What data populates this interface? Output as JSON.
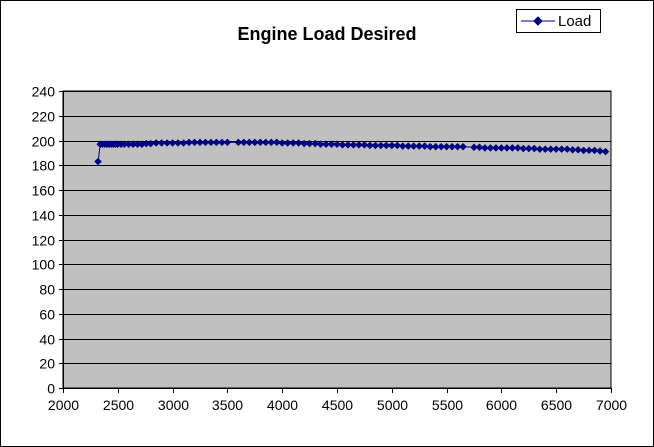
{
  "chart_data": {
    "type": "line",
    "title": "Engine Load Desired",
    "xlabel": "",
    "ylabel": "",
    "xlim": [
      2000,
      7000
    ],
    "ylim": [
      0,
      240
    ],
    "xticks": [
      2000,
      2500,
      3000,
      3500,
      4000,
      4500,
      5000,
      5500,
      6000,
      6500,
      7000
    ],
    "yticks": [
      0,
      20,
      40,
      60,
      80,
      100,
      120,
      140,
      160,
      180,
      200,
      220,
      240
    ],
    "grid": "horizontal major gridlines",
    "legend": "top-right",
    "series": [
      {
        "name": "Load",
        "color": "#000080",
        "marker": "diamond",
        "x": [
          2320,
          2340,
          2360,
          2380,
          2400,
          2420,
          2440,
          2460,
          2480,
          2500,
          2530,
          2560,
          2600,
          2640,
          2680,
          2720,
          2760,
          2800,
          2850,
          2900,
          2950,
          3000,
          3050,
          3100,
          3150,
          3200,
          3250,
          3300,
          3350,
          3400,
          3450,
          3500,
          3600,
          3650,
          3700,
          3750,
          3800,
          3850,
          3900,
          3950,
          4000,
          4050,
          4100,
          4150,
          4200,
          4250,
          4300,
          4350,
          4400,
          4450,
          4500,
          4550,
          4600,
          4650,
          4700,
          4750,
          4800,
          4850,
          4900,
          4950,
          5000,
          5050,
          5100,
          5150,
          5200,
          5250,
          5300,
          5350,
          5400,
          5450,
          5500,
          5550,
          5600,
          5650,
          5750,
          5800,
          5850,
          5900,
          5950,
          6000,
          6050,
          6100,
          6150,
          6200,
          6250,
          6300,
          6350,
          6400,
          6450,
          6500,
          6550,
          6600,
          6650,
          6700,
          6750,
          6800,
          6850,
          6900,
          6950
        ],
        "y": [
          183,
          197,
          197,
          197,
          197,
          197,
          197,
          197,
          197,
          197,
          197,
          197,
          197,
          197,
          197,
          197,
          197.5,
          197.5,
          198,
          198,
          198,
          198,
          198,
          198,
          198.5,
          198.5,
          198.5,
          198.5,
          198.5,
          198.5,
          198.5,
          198.5,
          198.5,
          198.5,
          198.5,
          198.5,
          198.5,
          198.5,
          198.5,
          198.5,
          198,
          198,
          198,
          198,
          197.5,
          197.5,
          197.5,
          197,
          197,
          197,
          197,
          196.5,
          196.5,
          196.5,
          196.5,
          196.5,
          196,
          196,
          196,
          196,
          196,
          196,
          195.5,
          195.5,
          195.5,
          195.5,
          195.5,
          195,
          195,
          195,
          195,
          195,
          195,
          195,
          194.5,
          194.5,
          194,
          194,
          194,
          194,
          194,
          194,
          194,
          193.5,
          193.5,
          193.5,
          193,
          193,
          193,
          193,
          193,
          193,
          192.5,
          192.5,
          192,
          192,
          192,
          191.5,
          191
        ]
      }
    ]
  },
  "colors": {
    "plot_background": "#c0c0c0",
    "gridline": "#000000",
    "series": "#000080",
    "border": "#000000"
  }
}
